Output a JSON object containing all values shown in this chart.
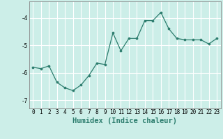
{
  "x": [
    0,
    1,
    2,
    3,
    4,
    5,
    6,
    7,
    8,
    9,
    10,
    11,
    12,
    13,
    14,
    15,
    16,
    17,
    18,
    19,
    20,
    21,
    22,
    23
  ],
  "y": [
    -5.8,
    -5.85,
    -5.75,
    -6.35,
    -6.55,
    -6.65,
    -6.45,
    -6.1,
    -5.65,
    -5.7,
    -4.55,
    -5.2,
    -4.75,
    -4.75,
    -4.1,
    -4.1,
    -3.8,
    -4.4,
    -4.75,
    -4.8,
    -4.8,
    -4.8,
    -4.95,
    -4.75
  ],
  "xlabel": "Humidex (Indice chaleur)",
  "xlim": [
    -0.5,
    23.5
  ],
  "ylim": [
    -7.3,
    -3.4
  ],
  "yticks": [
    -7,
    -6,
    -5,
    -4
  ],
  "xticks": [
    0,
    1,
    2,
    3,
    4,
    5,
    6,
    7,
    8,
    9,
    10,
    11,
    12,
    13,
    14,
    15,
    16,
    17,
    18,
    19,
    20,
    21,
    22,
    23
  ],
  "line_color": "#2d7d6e",
  "marker_color": "#2d7d6e",
  "bg_color": "#cceee8",
  "grid_color": "#ffffff",
  "tick_label_fontsize": 5.5,
  "xlabel_fontsize": 7.5,
  "line_width": 0.9,
  "marker_size": 2.2
}
